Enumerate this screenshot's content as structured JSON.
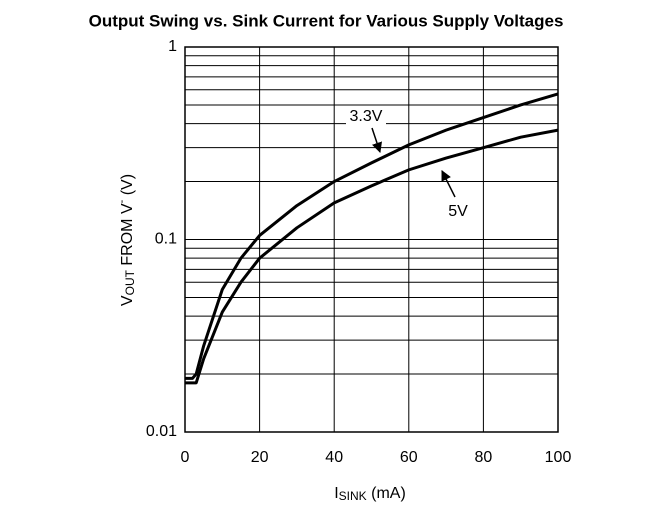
{
  "chart_data": {
    "type": "line",
    "title": "Output Swing vs. Sink Current for Various Supply Voltages",
    "x_label": [
      "I",
      "SINK",
      " (mA)"
    ],
    "y_label": [
      "V",
      "OUT",
      " FROM V",
      "-",
      " (V)"
    ],
    "x": [
      0,
      2,
      3,
      5,
      10,
      15,
      20,
      30,
      40,
      50,
      60,
      70,
      80,
      90,
      100
    ],
    "series": [
      {
        "name": "3.3V",
        "color": "#000000",
        "values": [
          0.019,
          0.019,
          0.02,
          0.028,
          0.055,
          0.08,
          0.105,
          0.15,
          0.2,
          0.25,
          0.31,
          0.37,
          0.43,
          0.5,
          0.57
        ]
      },
      {
        "name": "5V",
        "color": "#000000",
        "values": [
          0.018,
          0.018,
          0.018,
          0.024,
          0.042,
          0.06,
          0.08,
          0.115,
          0.155,
          0.19,
          0.23,
          0.265,
          0.3,
          0.34,
          0.37
        ]
      }
    ],
    "xlim": [
      0,
      100
    ],
    "xticks": [
      0,
      20,
      40,
      60,
      80,
      100
    ],
    "ylim": [
      0.01,
      1
    ],
    "yticks": [
      0.01,
      0.1,
      1
    ],
    "yminor": [
      0.02,
      0.03,
      0.04,
      0.05,
      0.06,
      0.07,
      0.08,
      0.09,
      0.2,
      0.3,
      0.4,
      0.5,
      0.6,
      0.7,
      0.8,
      0.9
    ],
    "ylog": true,
    "grid": true
  }
}
